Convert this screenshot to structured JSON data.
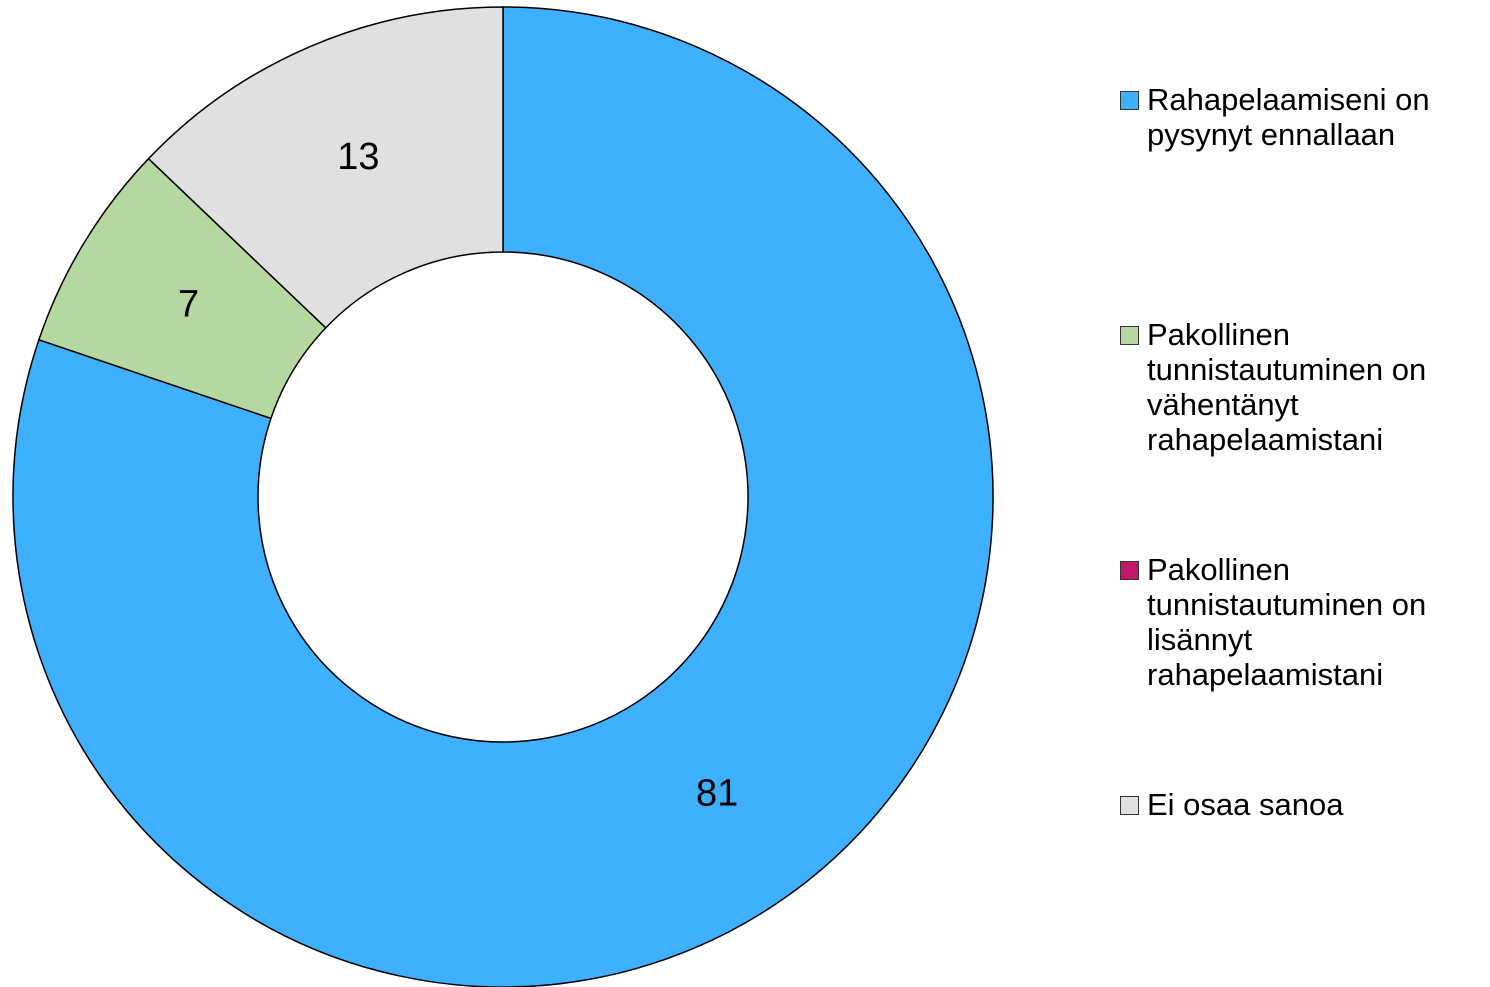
{
  "chart_data": {
    "type": "donut",
    "categories": [
      "Rahapelaamiseni on pysynyt ennallaan",
      "Pakollinen tunnistautuminen on vähentänyt rahapelaamistani",
      "Pakollinen tunnistautuminen on lisännyt rahapelaamistani",
      "Ei osaa sanoa"
    ],
    "values": [
      81,
      7,
      0,
      13
    ],
    "colors": [
      "#3eb0fe",
      "#b5d7a0",
      "#c0186a",
      "#e0e0e0"
    ],
    "legend": "right"
  }
}
